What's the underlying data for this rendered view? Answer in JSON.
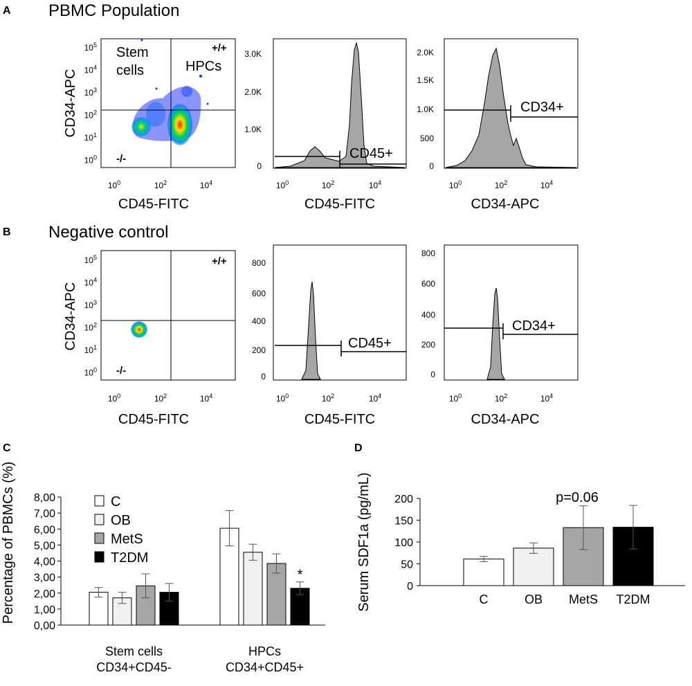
{
  "panel_A": {
    "letter": "A",
    "title": "PBMC Population",
    "scatter": {
      "xlabel": "CD45-FITC",
      "ylabel": "CD34-APC",
      "quadrant_labels": {
        "top_left": [
          "Stem",
          "cells"
        ],
        "top_right_sign": "+/+",
        "top_right_name": "HPCs",
        "bottom_left": "-/-"
      }
    },
    "hist1": {
      "xlabel": "CD45-FITC",
      "y_ticks": [
        "3.0K",
        "2.0K",
        "1.0K",
        "0"
      ],
      "gate_label": "CD45+"
    },
    "hist2": {
      "xlabel": "CD34-APC",
      "y_ticks": [
        "2.0K",
        "1.5K",
        "1.0K",
        "500",
        "0"
      ],
      "gate_label": "CD34+"
    }
  },
  "panel_B": {
    "letter": "B",
    "title": "Negative control",
    "scatter": {
      "xlabel": "CD45-FITC",
      "ylabel": "CD34-APC",
      "quadrant_labels": {
        "top_right_sign": "+/+",
        "bottom_left": "-/-"
      }
    },
    "hist1": {
      "xlabel": "CD45-FITC",
      "y_ticks": [
        "800",
        "600",
        "400",
        "200",
        "0"
      ],
      "gate_label": "CD45+"
    },
    "hist2": {
      "xlabel": "CD34-APC",
      "y_ticks": [
        "800",
        "600",
        "400",
        "200",
        "0"
      ],
      "gate_label": "CD34+"
    }
  },
  "log_ticks": {
    "x": [
      {
        "base": "10",
        "exp": "0"
      },
      {
        "base": "10",
        "exp": "2"
      },
      {
        "base": "10",
        "exp": "4"
      }
    ],
    "y": [
      {
        "base": "10",
        "exp": "5"
      },
      {
        "base": "10",
        "exp": "4"
      },
      {
        "base": "10",
        "exp": "3"
      },
      {
        "base": "10",
        "exp": "2"
      },
      {
        "base": "10",
        "exp": "1"
      },
      {
        "base": "10",
        "exp": "0"
      }
    ]
  },
  "colors": {
    "fill_gray": "#a6a6a6",
    "white": "#ffffff",
    "light": "#f0f0f0",
    "mid": "#a6a6a6",
    "black": "#000000"
  },
  "chart_data": [
    {
      "type": "bar",
      "panel": "C",
      "ylabel": "Percentage of PBMCs (%)",
      "ylim": [
        0,
        8
      ],
      "y_tick_labels": [
        "8,00",
        "7,00",
        "6,00",
        "5,00",
        "4,00",
        "3,00",
        "2,00",
        "1,00",
        "0,00"
      ],
      "groups": [
        {
          "name": "Stem cells",
          "subname": "CD34+CD45-"
        },
        {
          "name": "HPCs",
          "subname": "CD34+CD45+"
        }
      ],
      "series": [
        {
          "name": "C",
          "values": [
            2.05,
            6.05
          ],
          "errors": [
            0.3,
            1.1
          ]
        },
        {
          "name": "OB",
          "values": [
            1.7,
            4.55
          ],
          "errors": [
            0.35,
            0.5
          ]
        },
        {
          "name": "MetS",
          "values": [
            2.45,
            3.85
          ],
          "errors": [
            0.75,
            0.6
          ]
        },
        {
          "name": "T2DM",
          "values": [
            2.05,
            2.3
          ],
          "errors": [
            0.55,
            0.4
          ]
        }
      ],
      "annotations": [
        {
          "text": "*",
          "group": 1,
          "series": 3
        }
      ]
    },
    {
      "type": "bar",
      "panel": "D",
      "ylabel": "Serum SDF1a (pg/mL)",
      "ylim": [
        0,
        200
      ],
      "y_tick_labels": [
        "200",
        "150",
        "100",
        "50",
        "0"
      ],
      "categories": [
        "C",
        "OB",
        "MetS",
        "T2DM"
      ],
      "values": [
        61,
        86,
        133,
        134
      ],
      "errors": [
        6,
        12,
        50,
        50
      ],
      "annotation": "p=0.06"
    }
  ]
}
